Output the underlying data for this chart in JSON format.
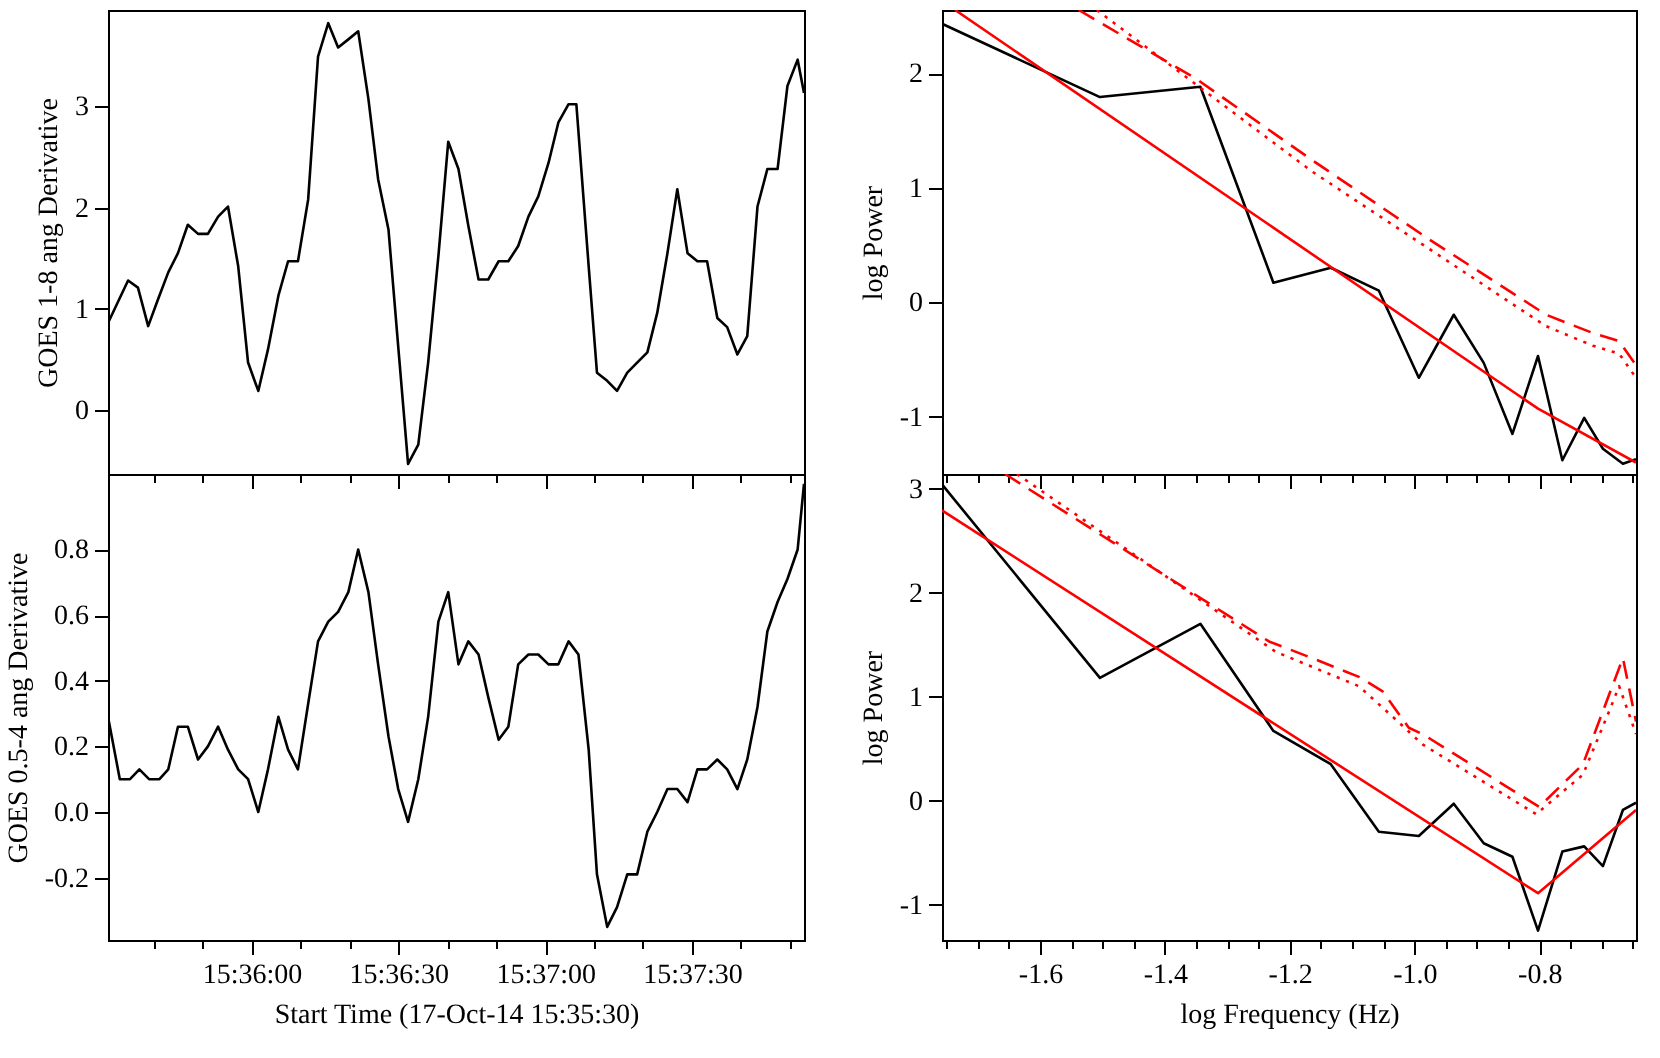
{
  "chart_data": [
    {
      "type": "line",
      "ylabel": "GOES 1-8 ang Derivative",
      "tick_labels": "y",
      "grid": false,
      "xlim": [
        15.59186,
        15.63136
      ],
      "ylim": [
        -0.63,
        3.95
      ],
      "xticks": [
        {
          "value": 15.59444,
          "label": null
        },
        {
          "value": 15.59722,
          "label": null
        },
        15.6,
        {
          "value": 15.60278,
          "label": null
        },
        {
          "value": 15.60556,
          "label": null
        },
        15.60833,
        {
          "value": 15.61111,
          "label": null
        },
        {
          "value": 15.61389,
          "label": null
        },
        15.61667,
        {
          "value": 15.61944,
          "label": null
        },
        {
          "value": 15.62222,
          "label": null
        },
        15.625,
        {
          "value": 15.62778,
          "label": null
        },
        {
          "value": 15.63056,
          "label": null
        }
      ],
      "yticks": [
        0,
        1,
        2,
        3
      ],
      "x": [
        15.59186,
        15.593,
        15.59356,
        15.59414,
        15.59469,
        15.59528,
        15.59583,
        15.59639,
        15.59697,
        15.59753,
        15.59811,
        15.59867,
        15.59925,
        15.59981,
        15.60039,
        15.60094,
        15.60153,
        15.60208,
        15.60264,
        15.60322,
        15.60378,
        15.60436,
        15.60492,
        15.6055,
        15.60606,
        15.60664,
        15.60719,
        15.60778,
        15.60833,
        15.60889,
        15.60947,
        15.61003,
        15.61061,
        15.61117,
        15.61175,
        15.61231,
        15.61289,
        15.61344,
        15.61403,
        15.61458,
        15.61514,
        15.61572,
        15.61628,
        15.61686,
        15.61742,
        15.618,
        15.61844,
        15.61914,
        15.61961,
        15.62019,
        15.62075,
        15.62133,
        15.62189,
        15.62247,
        15.62303,
        15.62361,
        15.62417,
        15.62475,
        15.62531,
        15.62586,
        15.62644,
        15.627,
        15.62758,
        15.62814,
        15.62872,
        15.62928,
        15.62986,
        15.63042,
        15.631,
        15.63136
      ],
      "series": [
        {
          "color": "#000000",
          "line_style": "solid",
          "values": [
            0.86,
            1.28,
            1.21,
            0.83,
            1.09,
            1.36,
            1.55,
            1.83,
            1.74,
            1.74,
            1.91,
            2.01,
            1.42,
            0.47,
            0.19,
            0.6,
            1.13,
            1.47,
            1.47,
            2.08,
            3.49,
            3.82,
            3.58,
            3.66,
            3.74,
            3.07,
            2.28,
            1.78,
            0.63,
            -0.53,
            -0.34,
            0.47,
            1.52,
            2.65,
            2.38,
            1.82,
            1.29,
            1.29,
            1.47,
            1.47,
            1.62,
            1.91,
            2.11,
            2.44,
            2.84,
            3.02,
            3.02,
            1.42,
            0.37,
            0.29,
            0.19,
            0.37,
            0.47,
            0.57,
            0.96,
            1.55,
            2.18,
            1.55,
            1.47,
            1.47,
            0.91,
            0.82,
            0.55,
            0.73,
            2.01,
            2.38,
            2.38,
            3.2,
            3.46,
            3.13
          ]
        }
      ]
    },
    {
      "type": "line",
      "ylabel": "log Power",
      "tick_labels": "y",
      "grid": false,
      "xlim": [
        -1.757,
        -0.645
      ],
      "ylim": [
        -1.5,
        2.55
      ],
      "xticks": [
        {
          "value": -1.75,
          "label": null
        },
        {
          "value": -1.7,
          "label": null
        },
        {
          "value": -1.65,
          "label": null
        },
        -1.6,
        {
          "value": -1.55,
          "label": null
        },
        {
          "value": -1.5,
          "label": null
        },
        {
          "value": -1.45,
          "label": null
        },
        -1.4,
        {
          "value": -1.35,
          "label": null
        },
        {
          "value": -1.3,
          "label": null
        },
        {
          "value": -1.25,
          "label": null
        },
        -1.2,
        {
          "value": -1.15,
          "label": null
        },
        {
          "value": -1.1,
          "label": null
        },
        {
          "value": -1.05,
          "label": null
        },
        -1,
        {
          "value": -0.95,
          "label": null
        },
        {
          "value": -0.9,
          "label": null
        },
        {
          "value": -0.85,
          "label": null
        },
        -0.8,
        {
          "value": -0.75,
          "label": null
        },
        {
          "value": -0.7,
          "label": null
        },
        {
          "value": -0.65,
          "label": null
        }
      ],
      "yticks": [
        -1,
        0,
        1,
        2
      ],
      "series": [
        {
          "color": "#000000",
          "line_style": "solid",
          "x": [
            -1.757,
            -1.504,
            -1.343,
            -1.226,
            -1.134,
            -1.057,
            -0.993,
            -0.937,
            -0.889,
            -0.843,
            -0.802,
            -0.763,
            -0.728,
            -0.698,
            -0.666,
            -0.645
          ],
          "values": [
            2.43,
            1.79,
            1.88,
            0.17,
            0.3,
            0.1,
            -0.66,
            -0.11,
            -0.53,
            -1.15,
            -0.47,
            -1.38,
            -1.01,
            -1.28,
            -1.41,
            -1.37
          ]
        },
        {
          "color": "#ff0000",
          "line_style": "solid",
          "x": [
            -1.736,
            -0.802,
            -0.645
          ],
          "values": [
            2.55,
            -0.93,
            -1.4
          ]
        },
        {
          "color": "#ff0000",
          "line_style": "dashed",
          "x": [
            -1.538,
            -1.35,
            -1.164,
            -0.977,
            -0.789,
            -0.714,
            -0.672,
            -0.645
          ],
          "values": [
            2.55,
            1.95,
            1.24,
            0.55,
            -0.11,
            -0.27,
            -0.34,
            -0.55
          ]
        },
        {
          "color": "#ff0000",
          "line_style": "dotted",
          "x": [
            -1.509,
            -1.164,
            -0.789,
            -0.714,
            -0.672,
            -0.645
          ],
          "values": [
            2.55,
            1.14,
            -0.21,
            -0.38,
            -0.45,
            -0.66
          ]
        }
      ]
    },
    {
      "type": "line",
      "xlabel": "Start Time (17-Oct-14 15:35:30)",
      "ylabel": "GOES 0.5-4 ang Derivative",
      "grid": false,
      "xlim": [
        15.59186,
        15.63136
      ],
      "ylim": [
        -0.39,
        1.03
      ],
      "xticks": [
        {
          "value": 15.59444,
          "label": null
        },
        {
          "value": 15.59722,
          "label": null
        },
        {
          "value": 15.6,
          "label": "15:36:00"
        },
        {
          "value": 15.60278,
          "label": null
        },
        {
          "value": 15.60556,
          "label": null
        },
        {
          "value": 15.60833,
          "label": "15:36:30"
        },
        {
          "value": 15.61111,
          "label": null
        },
        {
          "value": 15.61389,
          "label": null
        },
        {
          "value": 15.61667,
          "label": "15:37:00"
        },
        {
          "value": 15.61944,
          "label": null
        },
        {
          "value": 15.62222,
          "label": null
        },
        {
          "value": 15.625,
          "label": "15:37:30"
        },
        {
          "value": 15.62778,
          "label": null
        },
        {
          "value": 15.63056,
          "label": null
        }
      ],
      "yticks": [
        -0.2,
        {
          "value": 0,
          "label": "0.0"
        },
        0.2,
        0.4,
        0.6,
        0.8
      ],
      "x": [
        15.59186,
        15.59253,
        15.59311,
        15.59364,
        15.59419,
        15.59478,
        15.59528,
        15.59583,
        15.59639,
        15.59697,
        15.59753,
        15.59811,
        15.59867,
        15.59925,
        15.59981,
        15.60039,
        15.60094,
        15.60153,
        15.60208,
        15.60264,
        15.60322,
        15.60378,
        15.60436,
        15.60492,
        15.6055,
        15.60606,
        15.60664,
        15.60719,
        15.60778,
        15.60833,
        15.60889,
        15.60947,
        15.61003,
        15.61061,
        15.61117,
        15.61175,
        15.61231,
        15.61289,
        15.61344,
        15.61403,
        15.61458,
        15.61514,
        15.61572,
        15.61628,
        15.61686,
        15.61742,
        15.618,
        15.61856,
        15.61914,
        15.61961,
        15.62019,
        15.62075,
        15.62133,
        15.62189,
        15.62247,
        15.62303,
        15.62361,
        15.62417,
        15.62475,
        15.62531,
        15.62586,
        15.62644,
        15.627,
        15.62758,
        15.62814,
        15.62872,
        15.62928,
        15.62986,
        15.63042,
        15.631,
        15.63136
      ],
      "series": [
        {
          "color": "#000000",
          "line_style": "solid",
          "values": [
            0.29,
            0.1,
            0.1,
            0.13,
            0.1,
            0.1,
            0.13,
            0.26,
            0.26,
            0.16,
            0.2,
            0.26,
            0.19,
            0.13,
            0.1,
            0.0,
            0.13,
            0.29,
            0.19,
            0.13,
            0.33,
            0.52,
            0.58,
            0.61,
            0.67,
            0.8,
            0.67,
            0.45,
            0.23,
            0.07,
            -0.03,
            0.1,
            0.29,
            0.58,
            0.67,
            0.45,
            0.52,
            0.48,
            0.35,
            0.22,
            0.26,
            0.45,
            0.48,
            0.48,
            0.45,
            0.45,
            0.52,
            0.48,
            0.19,
            -0.19,
            -0.35,
            -0.29,
            -0.19,
            -0.19,
            -0.06,
            0.0,
            0.07,
            0.07,
            0.03,
            0.13,
            0.13,
            0.16,
            0.13,
            0.07,
            0.16,
            0.32,
            0.55,
            0.64,
            0.71,
            0.8,
            1.0
          ]
        }
      ]
    },
    {
      "type": "line",
      "xlabel": "log Frequency (Hz)",
      "ylabel": "log Power",
      "grid": false,
      "xlim": [
        -1.757,
        -0.645
      ],
      "ylim": [
        -1.34,
        3.14
      ],
      "xticks": [
        {
          "value": -1.75,
          "label": null
        },
        {
          "value": -1.7,
          "label": null
        },
        {
          "value": -1.65,
          "label": null
        },
        -1.6,
        {
          "value": -1.55,
          "label": null
        },
        {
          "value": -1.5,
          "label": null
        },
        {
          "value": -1.45,
          "label": null
        },
        -1.4,
        {
          "value": -1.35,
          "label": null
        },
        {
          "value": -1.3,
          "label": null
        },
        {
          "value": -1.25,
          "label": null
        },
        -1.2,
        {
          "value": -1.15,
          "label": null
        },
        {
          "value": -1.1,
          "label": null
        },
        {
          "value": -1.05,
          "label": null
        },
        {
          "value": -1,
          "label": "-1.0"
        },
        {
          "value": -0.95,
          "label": null
        },
        {
          "value": -0.9,
          "label": null
        },
        {
          "value": -0.85,
          "label": null
        },
        -0.8,
        {
          "value": -0.75,
          "label": null
        },
        {
          "value": -0.7,
          "label": null
        },
        {
          "value": -0.65,
          "label": null
        }
      ],
      "yticks": [
        -1,
        0,
        1,
        2,
        3
      ],
      "series": [
        {
          "color": "#000000",
          "line_style": "solid",
          "x": [
            -1.757,
            -1.504,
            -1.343,
            -1.226,
            -1.134,
            -1.057,
            -0.993,
            -0.937,
            -0.889,
            -0.843,
            -0.802,
            -0.763,
            -0.728,
            -0.698,
            -0.666,
            -0.645
          ],
          "values": [
            3.04,
            1.18,
            1.7,
            0.67,
            0.35,
            -0.3,
            -0.34,
            -0.03,
            -0.41,
            -0.54,
            -1.25,
            -0.49,
            -0.44,
            -0.63,
            -0.09,
            -0.02
          ]
        },
        {
          "color": "#ff0000",
          "line_style": "solid",
          "x": [
            -1.757,
            -0.802,
            -0.645
          ],
          "values": [
            2.79,
            -0.89,
            -0.09
          ]
        },
        {
          "color": "#ff0000",
          "line_style": "dashed",
          "x": [
            -1.656,
            -1.233,
            -1.164,
            -1.089,
            -1.051,
            -1.009,
            -0.987,
            -0.811,
            -0.8,
            -0.73,
            -0.688,
            -0.666,
            -0.645
          ],
          "values": [
            3.14,
            1.53,
            1.37,
            1.19,
            1.05,
            0.7,
            0.64,
            -0.02,
            -0.06,
            0.35,
            1.02,
            1.37,
            0.76
          ]
        },
        {
          "color": "#ff0000",
          "line_style": "dotted",
          "x": [
            -1.637,
            -1.222,
            -1.089,
            -1.03,
            -0.987,
            -0.805,
            -0.73,
            -0.688,
            -0.672,
            -0.645
          ],
          "values": [
            3.14,
            1.43,
            1.1,
            0.78,
            0.54,
            -0.13,
            0.25,
            0.86,
            1.1,
            0.64
          ]
        }
      ]
    }
  ]
}
